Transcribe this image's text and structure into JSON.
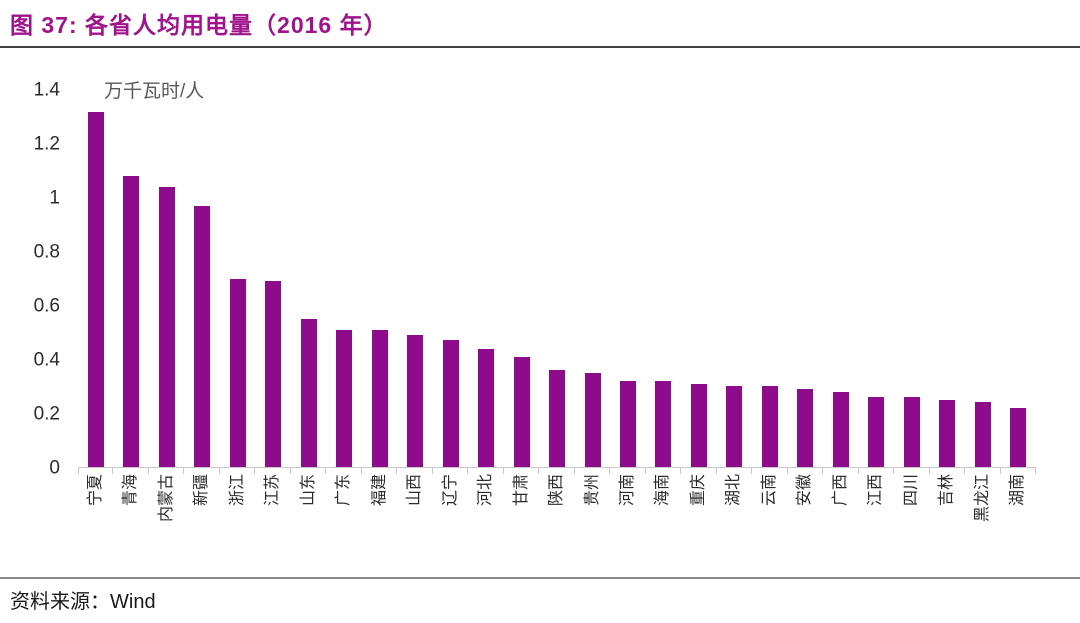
{
  "figure": {
    "title": "图 37:  各省人均用电量（2016 年）",
    "source_prefix": "资料来源：",
    "source_name": "Wind"
  },
  "chart_data": {
    "type": "bar",
    "title": "各省人均用电量（2016 年）",
    "unit_label": "万千瓦时/人",
    "xlabel": "",
    "ylabel": "万千瓦时/人",
    "categories": [
      "宁夏",
      "青海",
      "内蒙古",
      "新疆",
      "浙江",
      "江苏",
      "山东",
      "广东",
      "福建",
      "山西",
      "辽宁",
      "河北",
      "甘肃",
      "陕西",
      "贵州",
      "河南",
      "海南",
      "重庆",
      "湖北",
      "云南",
      "安徽",
      "广西",
      "江西",
      "四川",
      "吉林",
      "黑龙江",
      "湖南"
    ],
    "values": [
      1.32,
      1.08,
      1.04,
      0.97,
      0.7,
      0.69,
      0.55,
      0.51,
      0.51,
      0.49,
      0.47,
      0.44,
      0.41,
      0.36,
      0.35,
      0.32,
      0.32,
      0.31,
      0.3,
      0.3,
      0.29,
      0.28,
      0.26,
      0.26,
      0.25,
      0.24,
      0.22
    ],
    "ylim": [
      0,
      1.4
    ],
    "yticks": [
      0,
      0.2,
      0.4,
      0.6,
      0.8,
      1,
      1.2,
      1.4
    ],
    "ytick_labels": [
      "0",
      "0.2",
      "0.4",
      "0.6",
      "0.8",
      "1",
      "1.2",
      "1.4"
    ],
    "grid": false,
    "legend": false,
    "x_labels_rotated_degrees": -90
  },
  "colors": {
    "bar": "#8E0C8C",
    "title": "#A1138C",
    "axis_text": "#2B2B2B",
    "unit_text": "#595959",
    "axis_line": "#C9C9C9",
    "rule_dark": "#404040",
    "rule_light": "#8C8C8C"
  }
}
